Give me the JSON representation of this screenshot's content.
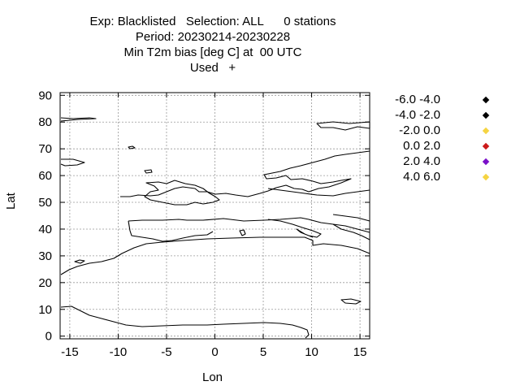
{
  "title": {
    "line1": "Exp: Blacklisted   Selection: ALL      0 stations",
    "line2": "Period: 20230214-20230228",
    "line3": "Min T2m bias [deg C] at  00 UTC",
    "line4": "Used   +"
  },
  "chart_data": {
    "type": "scatter",
    "xlabel": "Lon",
    "ylabel": "Lat",
    "xlim": [
      -16,
      16
    ],
    "ylim": [
      -1,
      91
    ],
    "x_ticks": [
      "-15",
      "-10",
      "-5",
      "0",
      "5",
      "10",
      "15"
    ],
    "y_ticks": [
      "0",
      "10",
      "20",
      "30",
      "40",
      "50",
      "60",
      "70",
      "80",
      "90"
    ],
    "grid": true,
    "legend_placement": "right",
    "legend": [
      {
        "label": "-6.0 -4.0",
        "color": "#000000"
      },
      {
        "label": "-4.0 -2.0",
        "color": "#000000"
      },
      {
        "label": "-2.0 0.0",
        "color": "#f5d442"
      },
      {
        "label": "0.0 2.0",
        "color": "#cc1a1a"
      },
      {
        "label": "2.0 4.0",
        "color": "#7a10c8"
      },
      {
        "label": "4.0 6.0",
        "color": "#f5d442"
      }
    ],
    "points": []
  }
}
